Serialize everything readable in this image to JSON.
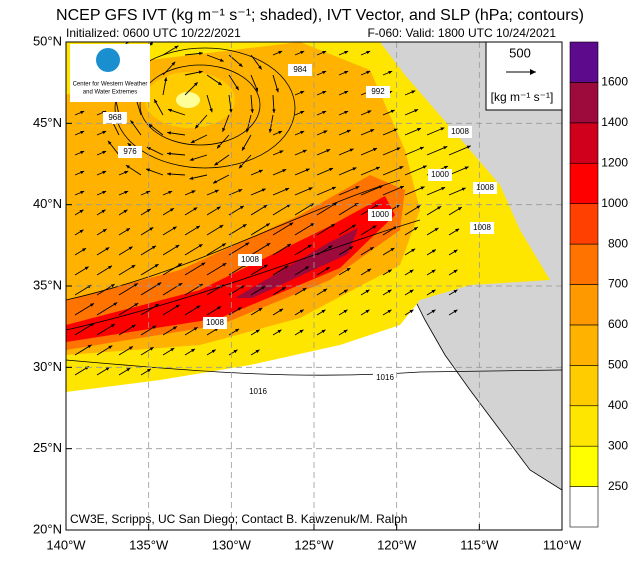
{
  "header": {
    "title": "NCEP GFS IVT (kg m⁻¹ s⁻¹; shaded), IVT Vector, and SLP (hPa; contours)",
    "initialized": "Initialized: 0600 UTC 10/22/2021",
    "valid": "F-060: Valid: 1800 UTC 10/24/2021"
  },
  "logo": {
    "line1": "Center for Western Weather",
    "line2": "and Water Extremes"
  },
  "map": {
    "lon_ticks": [
      {
        "value": -140,
        "label": "140°W"
      },
      {
        "value": -135,
        "label": "135°W"
      },
      {
        "value": -130,
        "label": "130°W"
      },
      {
        "value": -125,
        "label": "125°W"
      },
      {
        "value": -120,
        "label": "120°W"
      },
      {
        "value": -115,
        "label": "115°W"
      },
      {
        "value": -110,
        "label": "110°W"
      }
    ],
    "lat_ticks": [
      {
        "value": 20,
        "label": "20°N"
      },
      {
        "value": 25,
        "label": "25°N"
      },
      {
        "value": 30,
        "label": "30°N"
      },
      {
        "value": 35,
        "label": "35°N"
      },
      {
        "value": 40,
        "label": "40°N"
      },
      {
        "value": 45,
        "label": "45°N"
      },
      {
        "value": 50,
        "label": "50°N"
      }
    ],
    "contour_labels": [
      "1016",
      "1016",
      "1008",
      "1008",
      "1000",
      "992",
      "984",
      "976",
      "968",
      "1008",
      "1008",
      "1000",
      "1008"
    ],
    "credit": "CW3E, Scripps, UC San Diego; Contact B. Kawzenuk/M. Ralph"
  },
  "vector_legend": {
    "magnitude": "500",
    "units": "[kg m⁻¹ s⁻¹]"
  },
  "colorbar": {
    "levels": [
      250,
      300,
      400,
      500,
      600,
      700,
      800,
      1000,
      1200,
      1400,
      1600
    ],
    "colors": [
      "#ffffff",
      "#ffff00",
      "#ffe600",
      "#ffcc00",
      "#ffb300",
      "#ff9900",
      "#ff7300",
      "#ff4000",
      "#ff0000",
      "#d0001c",
      "#9c0b3c",
      "#5e0a8c"
    ]
  }
}
